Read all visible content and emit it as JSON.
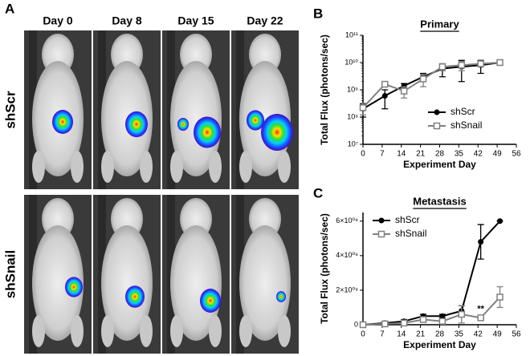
{
  "figure": {
    "panel_a": {
      "label": "A",
      "columns": [
        "Day 0",
        "Day 8",
        "Day 15",
        "Day 22"
      ],
      "rows": [
        "shScr",
        "shSnail"
      ]
    }
  },
  "chart_data": [
    {
      "type": "line",
      "panel": "B",
      "title": "Primary",
      "x_label": "Experiment Day",
      "y_label": "Total Flux (photons/sec)",
      "log_y": true,
      "legend": "lower right",
      "xlim": [
        0,
        56
      ],
      "xticks": [
        0,
        7,
        14,
        21,
        28,
        35,
        42,
        49,
        56
      ],
      "ylim": [
        10000000,
        100000000000
      ],
      "yticks": [
        {
          "value": 10000000,
          "label": "10⁷"
        },
        {
          "value": 100000000,
          "label": "10⁸"
        },
        {
          "value": 1000000000,
          "label": "10⁹"
        },
        {
          "value": 10000000000,
          "label": "10¹⁰"
        },
        {
          "value": 100000000000,
          "label": "10¹¹"
        }
      ],
      "x": [
        0,
        8,
        15,
        22,
        29,
        36,
        43,
        50
      ],
      "series": [
        {
          "name": "shScr",
          "color": "#000000",
          "marker": "circle",
          "values": [
            200000000,
            600000000,
            1400000000,
            3000000000,
            6000000000,
            7000000000,
            8000000000,
            10000000000
          ],
          "errors": [
            100000000,
            400000000,
            300000000,
            1000000000,
            3000000000,
            5000000000,
            4000000000,
            2000000000
          ]
        },
        {
          "name": "shSnail",
          "color": "#808080",
          "marker": "square",
          "values": [
            220000000,
            1600000000,
            900000000,
            2500000000,
            7000000000,
            8000000000,
            9000000000,
            10000000000
          ],
          "errors": [
            100000000,
            300000000,
            400000000,
            1200000000,
            2000000000,
            3000000000,
            2000000000,
            2000000000
          ]
        }
      ]
    },
    {
      "type": "line",
      "panel": "C",
      "title": "Metastasis",
      "x_label": "Experiment Day",
      "y_label": "Total Flux (photons/sec)",
      "log_y": false,
      "legend": "upper left",
      "xlim": [
        0,
        56
      ],
      "xticks": [
        0,
        7,
        14,
        21,
        28,
        35,
        42,
        49,
        56
      ],
      "ylim": [
        0,
        6500000000
      ],
      "yticks": [
        0,
        {
          "value": 2000000000,
          "label": "2×10⁰⁹"
        },
        {
          "value": 4000000000,
          "label": "4×10⁰⁹"
        },
        {
          "value": 6000000000,
          "label": "6×10⁰⁹"
        }
      ],
      "x": [
        0,
        8,
        15,
        22,
        29,
        36,
        43,
        50
      ],
      "series": [
        {
          "name": "shScr",
          "color": "#000000",
          "marker": "circle",
          "values": [
            0,
            100000000,
            200000000,
            500000000,
            500000000,
            800000000,
            4800000000,
            6000000000
          ],
          "errors": [
            0,
            100000000,
            100000000,
            100000000,
            100000000,
            300000000,
            1000000000,
            0
          ]
        },
        {
          "name": "shSnail",
          "color": "#808080",
          "marker": "square",
          "values": [
            0,
            50000000,
            100000000,
            300000000,
            200000000,
            600000000,
            400000000,
            1600000000
          ],
          "errors": [
            0,
            50000000,
            50000000,
            100000000,
            100000000,
            500000000,
            100000000,
            600000000
          ]
        }
      ],
      "annotations": [
        {
          "text": "**",
          "x": 43,
          "y": 900000000
        }
      ]
    }
  ]
}
